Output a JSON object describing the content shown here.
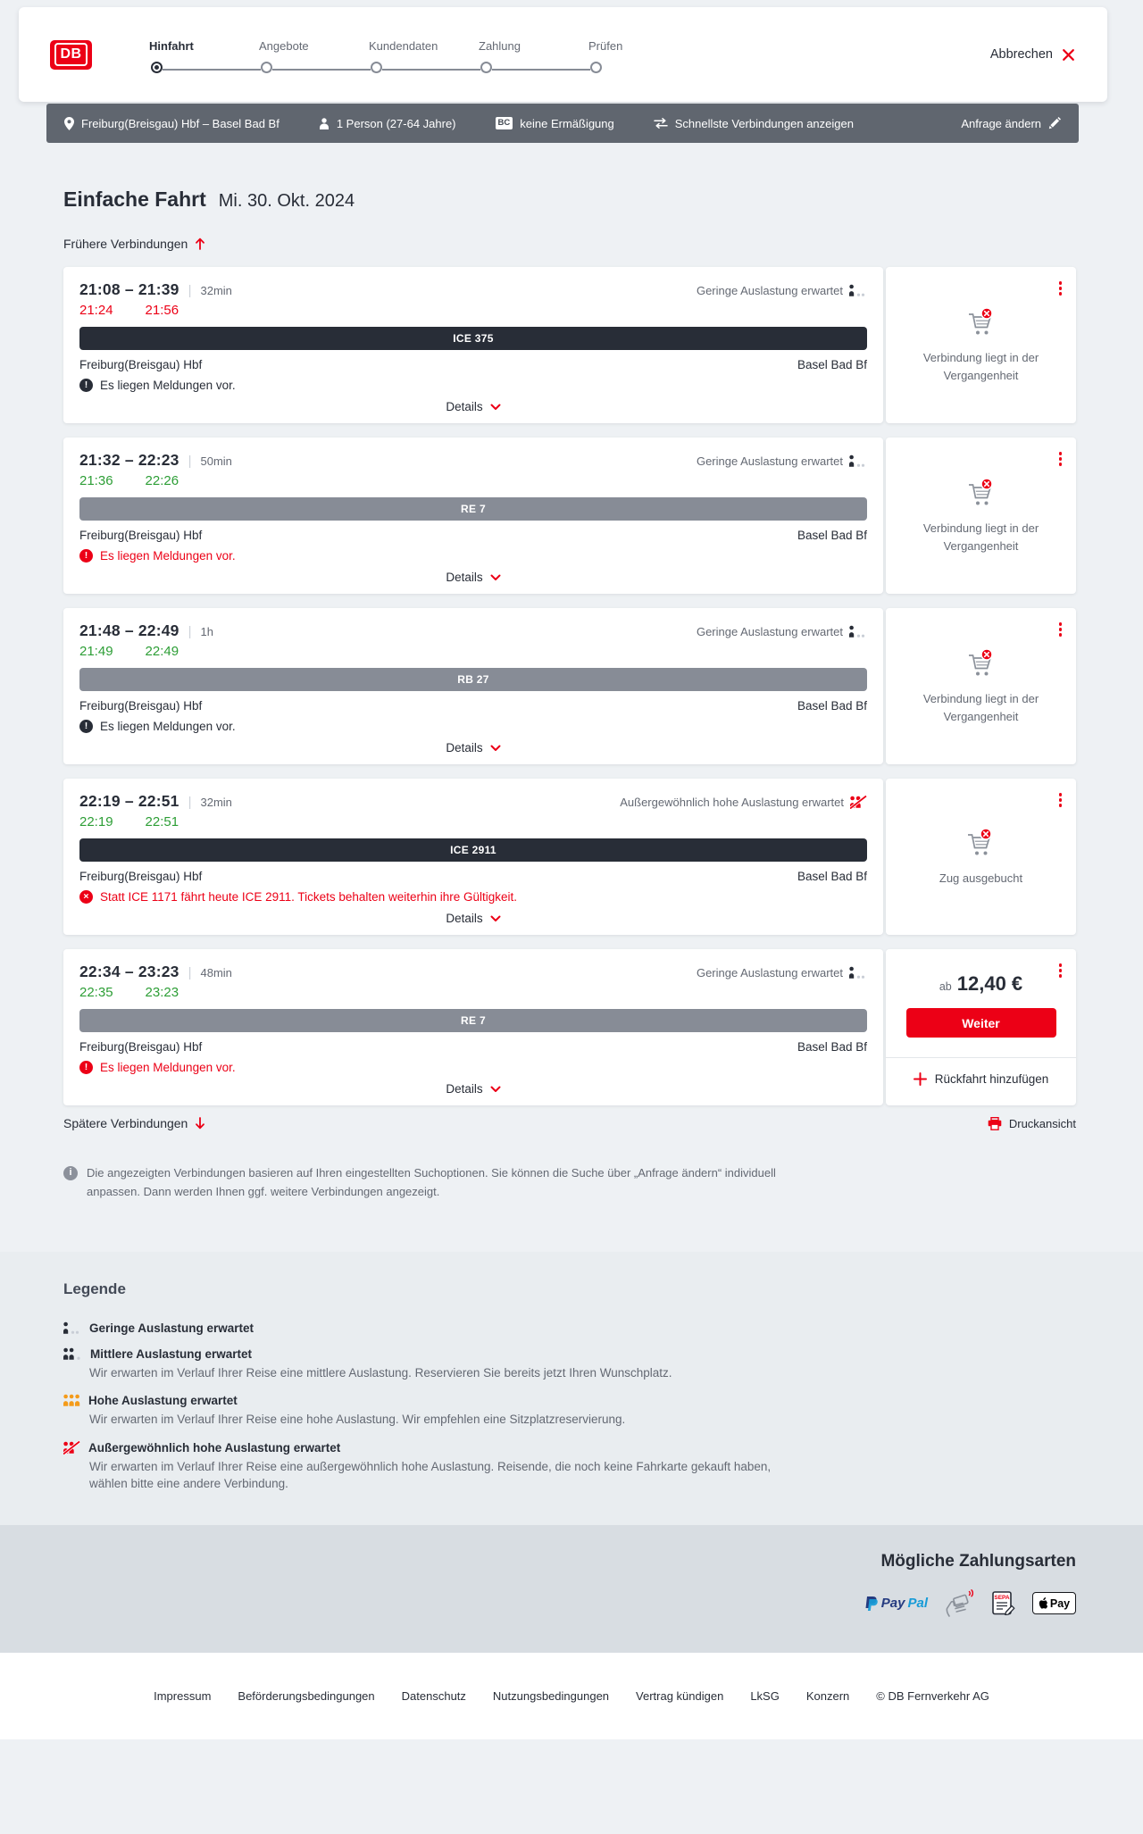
{
  "colors": {
    "db_red": "#ec0016",
    "dark": "#282d37",
    "gray_text": "#646973",
    "train_dark": "#282d37",
    "train_gray": "#878c96",
    "green_ontime": "#2d9e36",
    "summary_bar_bg": "#60666f",
    "page_bg": "#eef1f4",
    "legend_bg": "#e9edf0",
    "payment_bg": "#d8dde2",
    "occupancy_high": "#f49b1a"
  },
  "header": {
    "logo_text": "DB",
    "cancel_label": "Abbrechen",
    "cancel_icon": "close-x-icon",
    "steps": [
      {
        "label": "Hinfahrt",
        "active": true
      },
      {
        "label": "Angebote",
        "active": false
      },
      {
        "label": "Kundendaten",
        "active": false
      },
      {
        "label": "Zahlung",
        "active": false
      },
      {
        "label": "Prüfen",
        "active": false
      }
    ]
  },
  "summary_bar": {
    "route": {
      "icon": "location-pin-icon",
      "text": "Freiburg(Breisgau) Hbf – Basel Bad Bf"
    },
    "passenger": {
      "icon": "person-icon",
      "text": "1 Person (27-64 Jahre)"
    },
    "discount": {
      "icon": "bahncard-badge",
      "badge": "BC",
      "text": "keine Ermäßigung"
    },
    "sort": {
      "icon": "swap-arrows-icon",
      "text": "Schnellste Verbindungen anzeigen"
    },
    "change": {
      "icon": "pencil-icon",
      "text": "Anfrage ändern"
    }
  },
  "results": {
    "title": "Einfache Fahrt",
    "date": "Mi. 30. Okt. 2024",
    "earlier": {
      "label": "Frühere Verbindungen",
      "icon": "arrow-up-icon"
    },
    "later": {
      "label": "Spätere Verbindungen",
      "icon": "arrow-down-icon"
    },
    "print": {
      "label": "Druckansicht",
      "icon": "printer-icon"
    },
    "details_label": "Details",
    "connections": [
      {
        "dep": "21:08",
        "arr": "21:39",
        "duration": "32min",
        "rt_dep": "21:24",
        "rt_arr": "21:56",
        "rt_status": "delay",
        "train": "ICE 375",
        "train_style": "dark",
        "from": "Freiburg(Breisgau) Hbf",
        "to": "Basel Bad Bf",
        "occupancy": {
          "label": "Geringe Auslastung erwartet",
          "level": "low",
          "icon": "occupancy-low-icon"
        },
        "message": {
          "text": "Es liegen Meldungen vor.",
          "severity": "neutral",
          "icon": "alert-circle-icon"
        },
        "side": {
          "kind": "cart",
          "icon": "cart-unavailable-icon",
          "text": "Verbindung liegt in der Vergangenheit"
        }
      },
      {
        "dep": "21:32",
        "arr": "22:23",
        "duration": "50min",
        "rt_dep": "21:36",
        "rt_arr": "22:26",
        "rt_status": "ontime",
        "train": "RE 7",
        "train_style": "gray",
        "from": "Freiburg(Breisgau) Hbf",
        "to": "Basel Bad Bf",
        "occupancy": {
          "label": "Geringe Auslastung erwartet",
          "level": "low",
          "icon": "occupancy-low-icon"
        },
        "message": {
          "text": "Es liegen Meldungen vor.",
          "severity": "alert",
          "icon": "alert-circle-icon"
        },
        "side": {
          "kind": "cart",
          "icon": "cart-unavailable-icon",
          "text": "Verbindung liegt in der Vergangenheit"
        }
      },
      {
        "dep": "21:48",
        "arr": "22:49",
        "duration": "1h",
        "rt_dep": "21:49",
        "rt_arr": "22:49",
        "rt_status": "ontime",
        "train": "RB 27",
        "train_style": "gray",
        "from": "Freiburg(Breisgau) Hbf",
        "to": "Basel Bad Bf",
        "occupancy": {
          "label": "Geringe Auslastung erwartet",
          "level": "low",
          "icon": "occupancy-low-icon"
        },
        "message": {
          "text": "Es liegen Meldungen vor.",
          "severity": "neutral",
          "icon": "alert-circle-icon"
        },
        "side": {
          "kind": "cart",
          "icon": "cart-unavailable-icon",
          "text": "Verbindung liegt in der Vergangenheit"
        }
      },
      {
        "dep": "22:19",
        "arr": "22:51",
        "duration": "32min",
        "rt_dep": "22:19",
        "rt_arr": "22:51",
        "rt_status": "ontime",
        "train": "ICE 2911",
        "train_style": "dark",
        "from": "Freiburg(Breisgau) Hbf",
        "to": "Basel Bad Bf",
        "occupancy": {
          "label": "Außergewöhnlich hohe Auslastung erwartet",
          "level": "exceptional",
          "icon": "occupancy-exceptional-icon"
        },
        "message": {
          "text": "Statt ICE 1171 fährt heute ICE 2911. Tickets behalten weiterhin ihre Gültigkeit.",
          "severity": "cancel",
          "icon": "cancel-circle-icon"
        },
        "side": {
          "kind": "cart",
          "icon": "cart-unavailable-icon",
          "text": "Zug ausgebucht"
        }
      },
      {
        "dep": "22:34",
        "arr": "23:23",
        "duration": "48min",
        "rt_dep": "22:35",
        "rt_arr": "23:23",
        "rt_status": "ontime",
        "train": "RE 7",
        "train_style": "gray",
        "from": "Freiburg(Breisgau) Hbf",
        "to": "Basel Bad Bf",
        "occupancy": {
          "label": "Geringe Auslastung erwartet",
          "level": "low",
          "icon": "occupancy-low-icon"
        },
        "message": {
          "text": "Es liegen Meldungen vor.",
          "severity": "alert",
          "icon": "alert-circle-icon"
        },
        "side": {
          "kind": "price",
          "prefix": "ab",
          "amount": "12,40 €",
          "cta": "Weiter",
          "add_icon": "plus-icon",
          "add_label": "Rückfahrt hinzufügen"
        }
      }
    ],
    "info_note": "Die angezeigten Verbindungen basieren auf Ihren eingestellten Suchoptionen. Sie können die Suche über „Anfrage ändern“ individuell anpassen. Dann werden Ihnen ggf. weitere Verbindungen angezeigt."
  },
  "legend": {
    "title": "Legende",
    "items": [
      {
        "title": "Geringe Auslastung erwartet",
        "desc": "",
        "level": "low",
        "icon": "occupancy-low-icon"
      },
      {
        "title": "Mittlere Auslastung erwartet",
        "desc": "Wir erwarten im Verlauf Ihrer Reise eine mittlere Auslastung. Reservieren Sie bereits jetzt Ihren Wunschplatz.",
        "level": "middle",
        "icon": "occupancy-middle-icon"
      },
      {
        "title": "Hohe Auslastung erwartet",
        "desc": "Wir erwarten im Verlauf Ihrer Reise eine hohe Auslastung. Wir empfehlen eine Sitzplatzreservierung.",
        "level": "high",
        "icon": "occupancy-high-icon"
      },
      {
        "title": "Außergewöhnlich hohe Auslastung erwartet",
        "desc": "Wir erwarten im Verlauf Ihrer Reise eine außergewöhnlich hohe Auslastung. Reisende, die noch keine Fahrkarte gekauft haben, wählen bitte eine andere Verbindung.",
        "level": "exceptional",
        "icon": "occupancy-exceptional-icon"
      }
    ]
  },
  "payments": {
    "title": "Mögliche Zahlungsarten",
    "paypal": {
      "icon": "paypal-icon",
      "label_dark": "Pay",
      "label_light": "Pal"
    },
    "hand_card": {
      "icon": "hand-card-icon"
    },
    "sepa": {
      "icon": "sepa-icon",
      "label": "SEPA"
    },
    "apple_pay": {
      "icon": "apple-pay-icon",
      "label": "Pay"
    }
  },
  "footer": {
    "links": [
      "Impressum",
      "Beförderungsbedingungen",
      "Datenschutz",
      "Nutzungsbedingungen",
      "Vertrag kündigen",
      "LkSG",
      "Konzern",
      "© DB Fernverkehr AG"
    ]
  }
}
